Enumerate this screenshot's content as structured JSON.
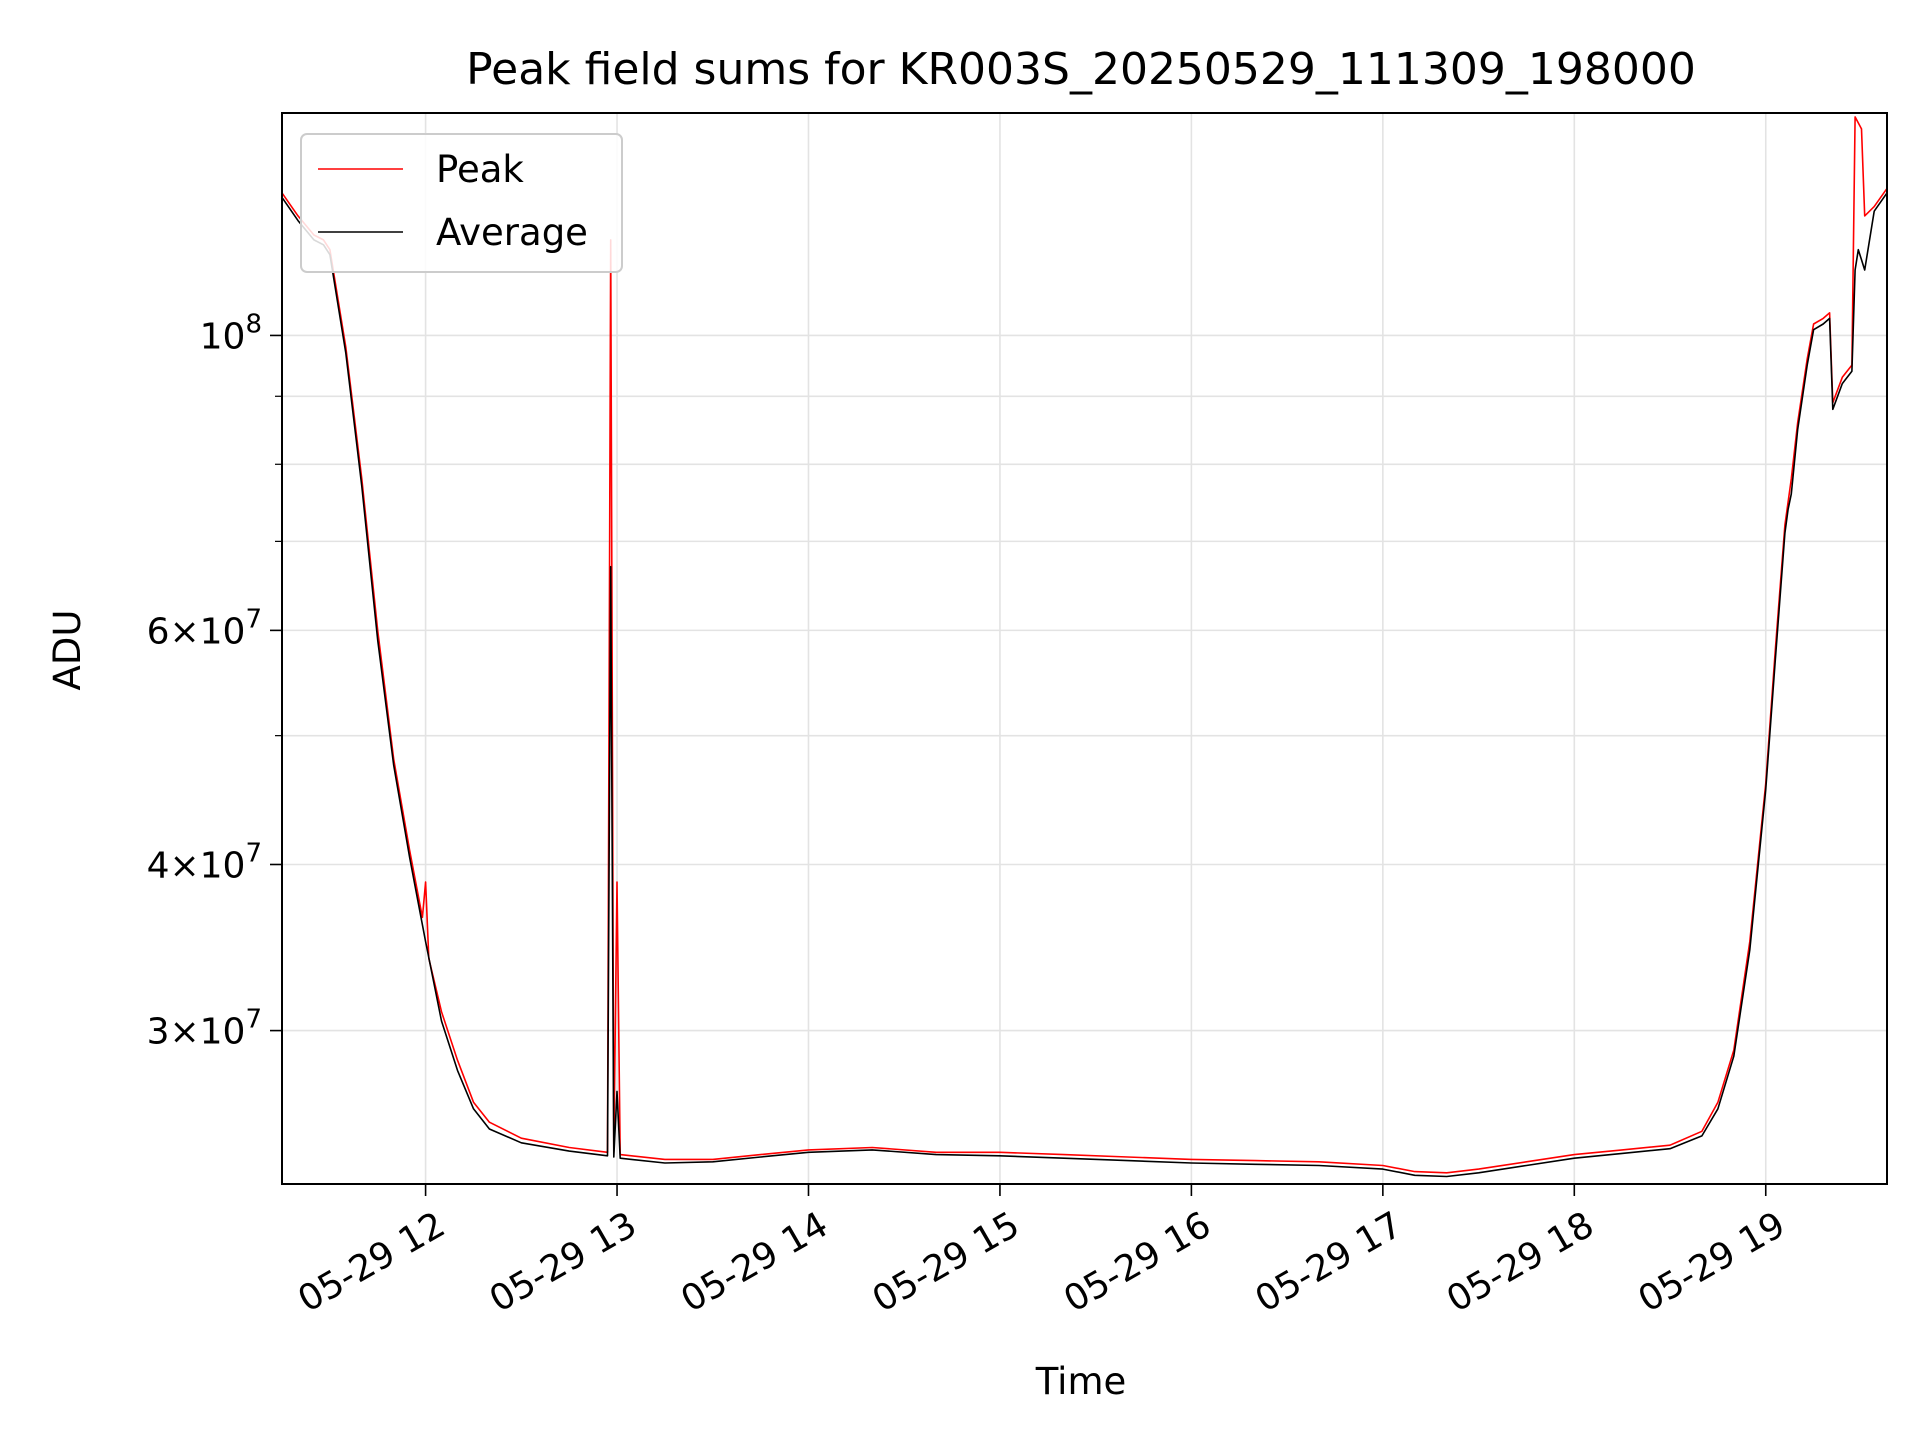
{
  "chart_data": {
    "type": "line",
    "title": "Peak field sums for KR003S_20250529_111309_198000",
    "xlabel": "Time",
    "ylabel": "ADU",
    "yscale": "log",
    "ylim": [
      23000000,
      147000000
    ],
    "xlim": [
      "2025-05-29 11:15",
      "2025-05-29 19:38"
    ],
    "x_ticks": [
      {
        "t": "2025-05-29 12:00",
        "label": "05-29 12"
      },
      {
        "t": "2025-05-29 13:00",
        "label": "05-29 13"
      },
      {
        "t": "2025-05-29 14:00",
        "label": "05-29 14"
      },
      {
        "t": "2025-05-29 15:00",
        "label": "05-29 15"
      },
      {
        "t": "2025-05-29 16:00",
        "label": "05-29 16"
      },
      {
        "t": "2025-05-29 17:00",
        "label": "05-29 17"
      },
      {
        "t": "2025-05-29 18:00",
        "label": "05-29 18"
      },
      {
        "t": "2025-05-29 19:00",
        "label": "05-29 19"
      }
    ],
    "y_ticks_major": [
      {
        "value": 100000000,
        "base": "10",
        "exp": "8",
        "mant": ""
      },
      {
        "value": 60000000,
        "base": "10",
        "exp": "7",
        "mant": "6"
      },
      {
        "value": 40000000,
        "base": "10",
        "exp": "7",
        "mant": "4"
      },
      {
        "value": 30000000,
        "base": "10",
        "exp": "7",
        "mant": "3"
      }
    ],
    "y_ticks_minor": [
      50000000,
      70000000,
      80000000,
      90000000
    ],
    "grid": true,
    "legend_position": "upper-left",
    "series": [
      {
        "name": "Peak",
        "color": "#ff0000",
        "points": [
          [
            "2025-05-29 11:15",
            128000000
          ],
          [
            "2025-05-29 11:20",
            123000000
          ],
          [
            "2025-05-29 11:25",
            119000000
          ],
          [
            "2025-05-29 11:28",
            118000000
          ],
          [
            "2025-05-29 11:30",
            116000000
          ],
          [
            "2025-05-29 11:35",
            98000000
          ],
          [
            "2025-05-29 11:40",
            78000000
          ],
          [
            "2025-05-29 11:45",
            60000000
          ],
          [
            "2025-05-29 11:50",
            48000000
          ],
          [
            "2025-05-29 11:55",
            41000000
          ],
          [
            "2025-05-29 11:59",
            36500000
          ],
          [
            "2025-05-29 12:00",
            38800000
          ],
          [
            "2025-05-29 12:01",
            34000000
          ],
          [
            "2025-05-29 12:05",
            31000000
          ],
          [
            "2025-05-29 12:10",
            28500000
          ],
          [
            "2025-05-29 12:15",
            26500000
          ],
          [
            "2025-05-29 12:20",
            25600000
          ],
          [
            "2025-05-29 12:30",
            24900000
          ],
          [
            "2025-05-29 12:45",
            24500000
          ],
          [
            "2025-05-29 12:57",
            24300000
          ],
          [
            "2025-05-29 12:58",
            118000000
          ],
          [
            "2025-05-29 12:59",
            24300000
          ],
          [
            "2025-05-29 13:00",
            38800000
          ],
          [
            "2025-05-29 13:01",
            24200000
          ],
          [
            "2025-05-29 13:15",
            24000000
          ],
          [
            "2025-05-29 13:30",
            24000000
          ],
          [
            "2025-05-29 13:45",
            24200000
          ],
          [
            "2025-05-29 14:00",
            24400000
          ],
          [
            "2025-05-29 14:20",
            24500000
          ],
          [
            "2025-05-29 14:40",
            24300000
          ],
          [
            "2025-05-29 15:00",
            24300000
          ],
          [
            "2025-05-29 15:20",
            24200000
          ],
          [
            "2025-05-29 15:40",
            24100000
          ],
          [
            "2025-05-29 16:00",
            24000000
          ],
          [
            "2025-05-29 16:20",
            23950000
          ],
          [
            "2025-05-29 16:40",
            23900000
          ],
          [
            "2025-05-29 17:00",
            23750000
          ],
          [
            "2025-05-29 17:10",
            23500000
          ],
          [
            "2025-05-29 17:20",
            23450000
          ],
          [
            "2025-05-29 17:30",
            23600000
          ],
          [
            "2025-05-29 17:45",
            23900000
          ],
          [
            "2025-05-29 18:00",
            24200000
          ],
          [
            "2025-05-29 18:15",
            24400000
          ],
          [
            "2025-05-29 18:30",
            24600000
          ],
          [
            "2025-05-29 18:40",
            25200000
          ],
          [
            "2025-05-29 18:45",
            26500000
          ],
          [
            "2025-05-29 18:50",
            29000000
          ],
          [
            "2025-05-29 18:55",
            35000000
          ],
          [
            "2025-05-29 19:00",
            46000000
          ],
          [
            "2025-05-29 19:03",
            58000000
          ],
          [
            "2025-05-29 19:06",
            72000000
          ],
          [
            "2025-05-29 19:08",
            78000000
          ],
          [
            "2025-05-29 19:10",
            86000000
          ],
          [
            "2025-05-29 19:13",
            96000000
          ],
          [
            "2025-05-29 19:15",
            102000000
          ],
          [
            "2025-05-29 19:18",
            103000000
          ],
          [
            "2025-05-29 19:20",
            104000000
          ],
          [
            "2025-05-29 19:21",
            89000000
          ],
          [
            "2025-05-29 19:24",
            93000000
          ],
          [
            "2025-05-29 19:27",
            95000000
          ],
          [
            "2025-05-29 19:28",
            146000000
          ],
          [
            "2025-05-29 19:30",
            143000000
          ],
          [
            "2025-05-29 19:31",
            123000000
          ],
          [
            "2025-05-29 19:34",
            125000000
          ],
          [
            "2025-05-29 19:38",
            129000000
          ]
        ]
      },
      {
        "name": "Average",
        "color": "#000000",
        "points": [
          [
            "2025-05-29 11:15",
            127000000
          ],
          [
            "2025-05-29 11:20",
            122000000
          ],
          [
            "2025-05-29 11:25",
            118000000
          ],
          [
            "2025-05-29 11:28",
            117000000
          ],
          [
            "2025-05-29 11:30",
            115000000
          ],
          [
            "2025-05-29 11:35",
            97000000
          ],
          [
            "2025-05-29 11:40",
            77000000
          ],
          [
            "2025-05-29 11:45",
            59000000
          ],
          [
            "2025-05-29 11:50",
            47500000
          ],
          [
            "2025-05-29 11:55",
            40500000
          ],
          [
            "2025-05-29 12:00",
            35000000
          ],
          [
            "2025-05-29 12:05",
            30500000
          ],
          [
            "2025-05-29 12:10",
            28000000
          ],
          [
            "2025-05-29 12:15",
            26200000
          ],
          [
            "2025-05-29 12:20",
            25300000
          ],
          [
            "2025-05-29 12:30",
            24700000
          ],
          [
            "2025-05-29 12:45",
            24350000
          ],
          [
            "2025-05-29 12:57",
            24150000
          ],
          [
            "2025-05-29 12:58",
            67000000
          ],
          [
            "2025-05-29 12:59",
            24100000
          ],
          [
            "2025-05-29 13:00",
            27000000
          ],
          [
            "2025-05-29 13:01",
            24050000
          ],
          [
            "2025-05-29 13:15",
            23850000
          ],
          [
            "2025-05-29 13:30",
            23900000
          ],
          [
            "2025-05-29 13:45",
            24100000
          ],
          [
            "2025-05-29 14:00",
            24300000
          ],
          [
            "2025-05-29 14:20",
            24400000
          ],
          [
            "2025-05-29 14:40",
            24200000
          ],
          [
            "2025-05-29 15:00",
            24150000
          ],
          [
            "2025-05-29 15:20",
            24050000
          ],
          [
            "2025-05-29 15:40",
            23950000
          ],
          [
            "2025-05-29 16:00",
            23850000
          ],
          [
            "2025-05-29 16:20",
            23800000
          ],
          [
            "2025-05-29 16:40",
            23750000
          ],
          [
            "2025-05-29 17:00",
            23600000
          ],
          [
            "2025-05-29 17:10",
            23350000
          ],
          [
            "2025-05-29 17:20",
            23300000
          ],
          [
            "2025-05-29 17:30",
            23450000
          ],
          [
            "2025-05-29 17:45",
            23750000
          ],
          [
            "2025-05-29 18:00",
            24050000
          ],
          [
            "2025-05-29 18:15",
            24250000
          ],
          [
            "2025-05-29 18:30",
            24450000
          ],
          [
            "2025-05-29 18:40",
            25000000
          ],
          [
            "2025-05-29 18:45",
            26200000
          ],
          [
            "2025-05-29 18:50",
            28700000
          ],
          [
            "2025-05-29 18:55",
            34500000
          ],
          [
            "2025-05-29 19:00",
            45500000
          ],
          [
            "2025-05-29 19:03",
            57000000
          ],
          [
            "2025-05-29 19:06",
            71000000
          ],
          [
            "2025-05-29 19:07",
            74000000
          ],
          [
            "2025-05-29 19:08",
            76000000
          ],
          [
            "2025-05-29 19:10",
            85000000
          ],
          [
            "2025-05-29 19:13",
            95000000
          ],
          [
            "2025-05-29 19:15",
            101000000
          ],
          [
            "2025-05-29 19:18",
            102000000
          ],
          [
            "2025-05-29 19:20",
            103000000
          ],
          [
            "2025-05-29 19:21",
            88000000
          ],
          [
            "2025-05-29 19:24",
            92000000
          ],
          [
            "2025-05-29 19:27",
            94000000
          ],
          [
            "2025-05-29 19:28",
            112000000
          ],
          [
            "2025-05-29 19:29",
            116000000
          ],
          [
            "2025-05-29 19:30",
            114000000
          ],
          [
            "2025-05-29 19:31",
            112000000
          ],
          [
            "2025-05-29 19:34",
            124000000
          ],
          [
            "2025-05-29 19:38",
            128000000
          ]
        ]
      }
    ]
  }
}
